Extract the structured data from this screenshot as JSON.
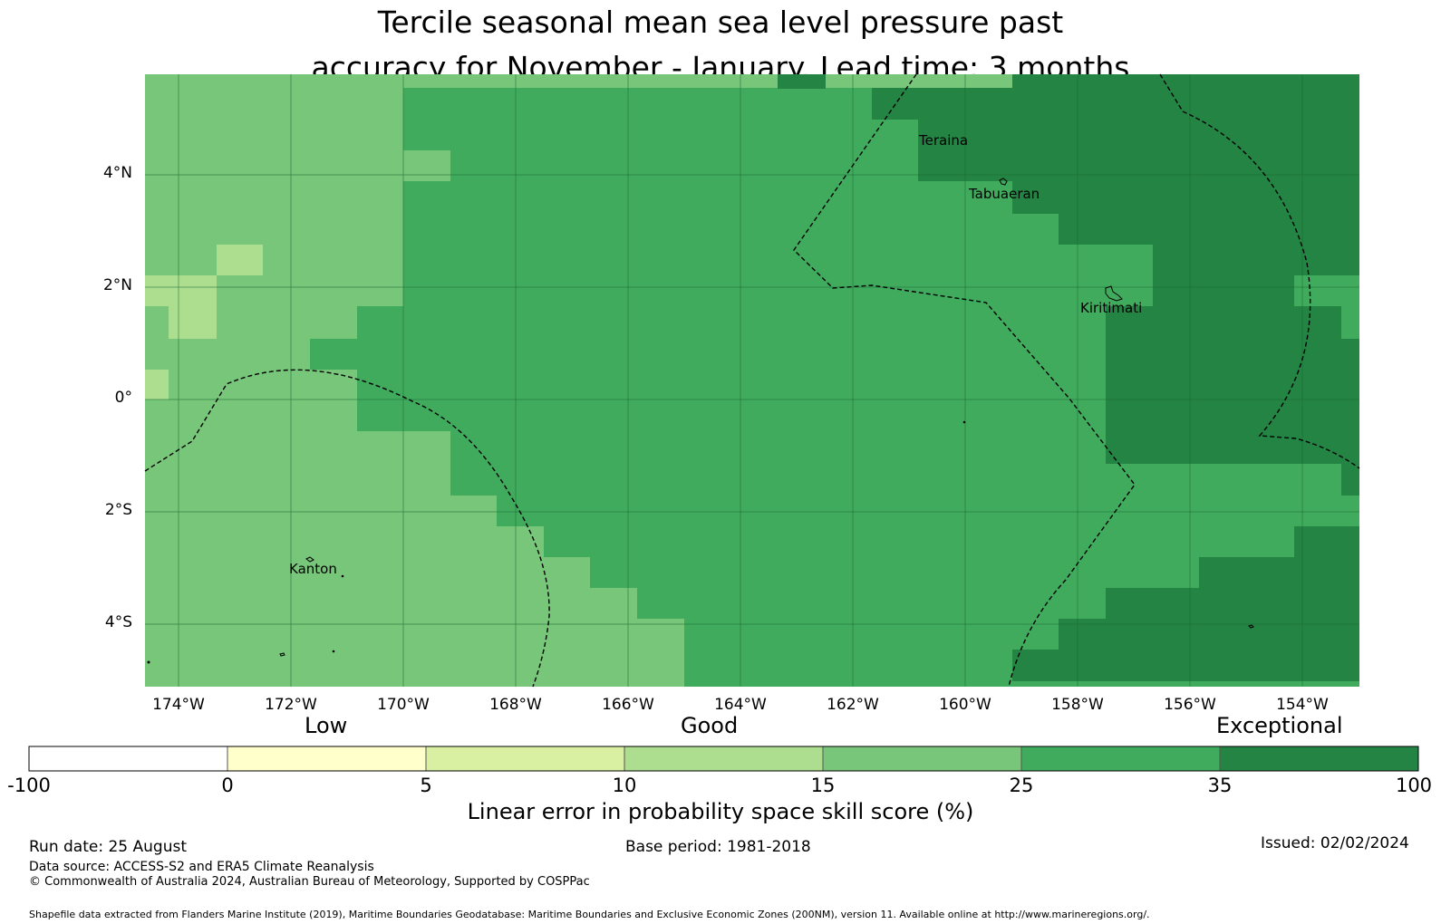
{
  "title": {
    "line1": "Tercile seasonal mean sea level pressure past",
    "line2": "accuracy for November - January. Lead time: 3 months"
  },
  "map": {
    "lat_ticks": [
      "4°N",
      "2°N",
      "0°",
      "2°S",
      "4°S"
    ],
    "lon_ticks": [
      "174°W",
      "172°W",
      "170°W",
      "168°W",
      "166°W",
      "164°W",
      "162°W",
      "160°W",
      "158°W",
      "156°W",
      "154°W"
    ],
    "place_labels": [
      "Teraina",
      "Tabuaeran",
      "Kiritimati",
      "Kanton"
    ],
    "colors": {
      "band_15_25": "#78c679",
      "band_25_35": "#41ab5d",
      "band_35_100": "#238443",
      "band_10_15": "#addd8e"
    }
  },
  "colorbar": {
    "category_labels": [
      "Low",
      "Good",
      "Exceptional"
    ],
    "tick_labels": [
      "-100",
      "0",
      "5",
      "10",
      "15",
      "25",
      "35",
      "100"
    ],
    "colors": [
      "#ffffff",
      "#ffffcc",
      "#d9f0a3",
      "#addd8e",
      "#78c679",
      "#41ab5d",
      "#238443"
    ],
    "title": "Linear error in probability space skill score (%)"
  },
  "footer": {
    "run_date": "Run date: 25 August",
    "base_period": "Base period: 1981-2018",
    "issued": "Issued: 02/02/2024",
    "data_source": "Data source: ACCESS-S2 and ERA5 Climate Reanalysis",
    "copyright": "© Commonwealth of Australia 2024, Australian Bureau of Meteorology, Supported by COSPPac",
    "shapefile": "Shapefile data extracted from Flanders Marine Institute (2019), Maritime Boundaries Geodatabase: Maritime Boundaries and Exclusive Economic Zones (200NM), version 11. Available online at http://www.marineregions.org/."
  }
}
